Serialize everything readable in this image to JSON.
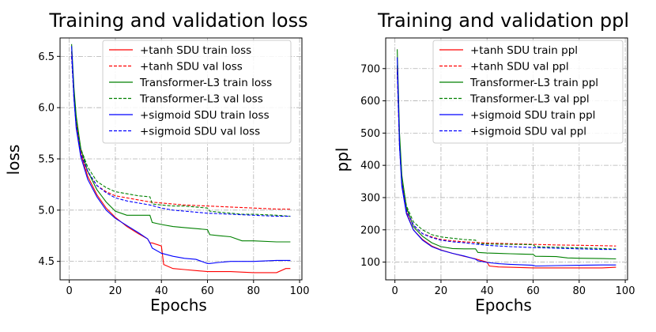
{
  "chart_data": [
    {
      "type": "line",
      "title": "Training and validation loss",
      "xlabel": "Epochs",
      "ylabel": "loss",
      "xlim": [
        -4,
        101
      ],
      "ylim": [
        4.32,
        6.68
      ],
      "xticks": [
        0,
        20,
        40,
        60,
        80,
        100
      ],
      "yticks": [
        4.5,
        5.0,
        5.5,
        6.0,
        6.5
      ],
      "ytick_labels": [
        "4.5",
        "5.0",
        "5.5",
        "6.0",
        "6.5"
      ],
      "grid": true,
      "legend_position": "top-right",
      "series": [
        {
          "name": "+tanh SDU train loss",
          "color": "#ff0000",
          "style": "solid",
          "x": [
            1,
            2,
            3,
            5,
            8,
            12,
            16,
            20,
            25,
            30,
            34,
            35,
            36,
            40,
            41,
            45,
            50,
            55,
            60,
            65,
            70,
            80,
            90,
            94,
            96
          ],
          "y": [
            6.55,
            6.15,
            5.85,
            5.55,
            5.33,
            5.15,
            5.02,
            4.93,
            4.84,
            4.77,
            4.72,
            4.68,
            4.68,
            4.65,
            4.47,
            4.43,
            4.42,
            4.41,
            4.4,
            4.4,
            4.4,
            4.39,
            4.39,
            4.43,
            4.43
          ]
        },
        {
          "name": "+tanh SDU val loss",
          "color": "#ff0000",
          "style": "dashed",
          "x": [
            1,
            2,
            3,
            5,
            8,
            12,
            16,
            20,
            25,
            30,
            35,
            40,
            45,
            50,
            60,
            70,
            80,
            90,
            96
          ],
          "y": [
            6.5,
            6.1,
            5.85,
            5.57,
            5.37,
            5.24,
            5.18,
            5.14,
            5.12,
            5.1,
            5.08,
            5.07,
            5.06,
            5.05,
            5.04,
            5.03,
            5.02,
            5.01,
            5.01
          ]
        },
        {
          "name": "Transformer-L3 train loss",
          "color": "#008000",
          "style": "solid",
          "x": [
            1,
            2,
            3,
            5,
            8,
            12,
            16,
            20,
            25,
            30,
            35,
            36,
            40,
            45,
            50,
            55,
            60,
            61,
            65,
            70,
            75,
            80,
            90,
            96
          ],
          "y": [
            6.62,
            6.2,
            5.92,
            5.6,
            5.38,
            5.2,
            5.08,
            4.99,
            4.95,
            4.95,
            4.95,
            4.88,
            4.86,
            4.84,
            4.83,
            4.82,
            4.81,
            4.76,
            4.75,
            4.74,
            4.7,
            4.7,
            4.69,
            4.69
          ]
        },
        {
          "name": "Transformer-L3 val loss",
          "color": "#008000",
          "style": "dashed",
          "x": [
            1,
            2,
            3,
            5,
            8,
            12,
            16,
            20,
            25,
            30,
            35,
            36,
            40,
            45,
            50,
            55,
            60,
            61,
            65,
            70,
            75,
            80,
            90,
            96
          ],
          "y": [
            6.55,
            6.15,
            5.88,
            5.6,
            5.42,
            5.28,
            5.22,
            5.18,
            5.16,
            5.14,
            5.13,
            5.06,
            5.05,
            5.04,
            5.04,
            5.03,
            5.02,
            4.99,
            4.98,
            4.97,
            4.96,
            4.96,
            4.95,
            4.94
          ]
        },
        {
          "name": "+sigmoid SDU train loss",
          "color": "#0000ff",
          "style": "solid",
          "x": [
            1,
            2,
            3,
            5,
            8,
            12,
            16,
            20,
            25,
            30,
            34,
            35,
            36,
            40,
            45,
            50,
            55,
            60,
            61,
            65,
            70,
            80,
            90,
            96
          ],
          "y": [
            6.6,
            6.1,
            5.8,
            5.52,
            5.3,
            5.13,
            5.0,
            4.92,
            4.85,
            4.78,
            4.72,
            4.68,
            4.63,
            4.58,
            4.55,
            4.53,
            4.52,
            4.48,
            4.48,
            4.49,
            4.5,
            4.5,
            4.51,
            4.51
          ]
        },
        {
          "name": "+sigmoid SDU val loss",
          "color": "#0000ff",
          "style": "dashed",
          "x": [
            1,
            2,
            3,
            5,
            8,
            12,
            16,
            20,
            25,
            30,
            35,
            40,
            45,
            50,
            55,
            60,
            70,
            80,
            90,
            96
          ],
          "y": [
            6.5,
            6.1,
            5.82,
            5.55,
            5.38,
            5.24,
            5.17,
            5.12,
            5.09,
            5.07,
            5.05,
            5.02,
            5.0,
            4.99,
            4.98,
            4.97,
            4.96,
            4.95,
            4.94,
            4.94
          ]
        }
      ]
    },
    {
      "type": "line",
      "title": "Training and validation ppl",
      "xlabel": "Epochs",
      "ylabel": "ppl",
      "xlim": [
        -4,
        101
      ],
      "ylim": [
        45,
        795
      ],
      "xticks": [
        0,
        20,
        40,
        60,
        80,
        100
      ],
      "yticks": [
        100,
        200,
        300,
        400,
        500,
        600,
        700
      ],
      "ytick_labels": [
        "100",
        "200",
        "300",
        "400",
        "500",
        "600",
        "700"
      ],
      "grid": true,
      "legend_position": "top-right",
      "series": [
        {
          "name": "+tanh SDU train ppl",
          "color": "#ff0000",
          "style": "solid",
          "x": [
            1,
            2,
            3,
            5,
            8,
            12,
            16,
            20,
            25,
            30,
            35,
            40,
            41,
            45,
            50,
            60,
            70,
            80,
            90,
            96
          ],
          "y": [
            700,
            470,
            345,
            255,
            200,
            170,
            150,
            138,
            127,
            118,
            110,
            100,
            88,
            85,
            84,
            82,
            82,
            82,
            82,
            84
          ]
        },
        {
          "name": "+tanh SDU val ppl",
          "color": "#ff0000",
          "style": "dashed",
          "x": [
            1,
            2,
            3,
            5,
            8,
            12,
            16,
            20,
            25,
            30,
            35,
            40,
            50,
            60,
            70,
            80,
            90,
            96
          ],
          "y": [
            690,
            460,
            350,
            265,
            215,
            188,
            178,
            170,
            166,
            163,
            161,
            159,
            157,
            155,
            153,
            152,
            151,
            150
          ]
        },
        {
          "name": "Transformer-L3 train ppl",
          "color": "#008000",
          "style": "solid",
          "x": [
            1,
            2,
            3,
            5,
            8,
            12,
            16,
            20,
            25,
            30,
            35,
            36,
            40,
            50,
            55,
            60,
            61,
            70,
            75,
            80,
            90,
            96
          ],
          "y": [
            760,
            500,
            370,
            270,
            210,
            180,
            160,
            148,
            142,
            141,
            141,
            130,
            128,
            126,
            125,
            124,
            118,
            117,
            113,
            112,
            111,
            110
          ]
        },
        {
          "name": "Transformer-L3 val ppl",
          "color": "#008000",
          "style": "dashed",
          "x": [
            1,
            2,
            3,
            5,
            8,
            12,
            16,
            20,
            25,
            30,
            35,
            36,
            40,
            50,
            60,
            61,
            70,
            80,
            90,
            96
          ],
          "y": [
            710,
            480,
            360,
            275,
            225,
            200,
            185,
            178,
            174,
            170,
            168,
            158,
            156,
            155,
            154,
            148,
            146,
            144,
            142,
            140
          ]
        },
        {
          "name": "+sigmoid SDU train ppl",
          "color": "#0000ff",
          "style": "solid",
          "x": [
            1,
            2,
            3,
            5,
            8,
            12,
            16,
            20,
            25,
            30,
            35,
            36,
            40,
            45,
            50,
            60,
            61,
            70,
            80,
            90,
            96
          ],
          "y": [
            735,
            460,
            335,
            250,
            200,
            168,
            148,
            137,
            127,
            119,
            109,
            104,
            99,
            95,
            93,
            90,
            88,
            89,
            90,
            91,
            91
          ]
        },
        {
          "name": "+sigmoid SDU val ppl",
          "color": "#0000ff",
          "style": "dashed",
          "x": [
            1,
            2,
            3,
            5,
            8,
            12,
            16,
            20,
            25,
            30,
            35,
            40,
            45,
            50,
            60,
            70,
            80,
            90,
            96
          ],
          "y": [
            690,
            460,
            345,
            260,
            215,
            188,
            176,
            168,
            163,
            160,
            156,
            152,
            150,
            148,
            145,
            143,
            141,
            139,
            139
          ]
        }
      ]
    }
  ]
}
